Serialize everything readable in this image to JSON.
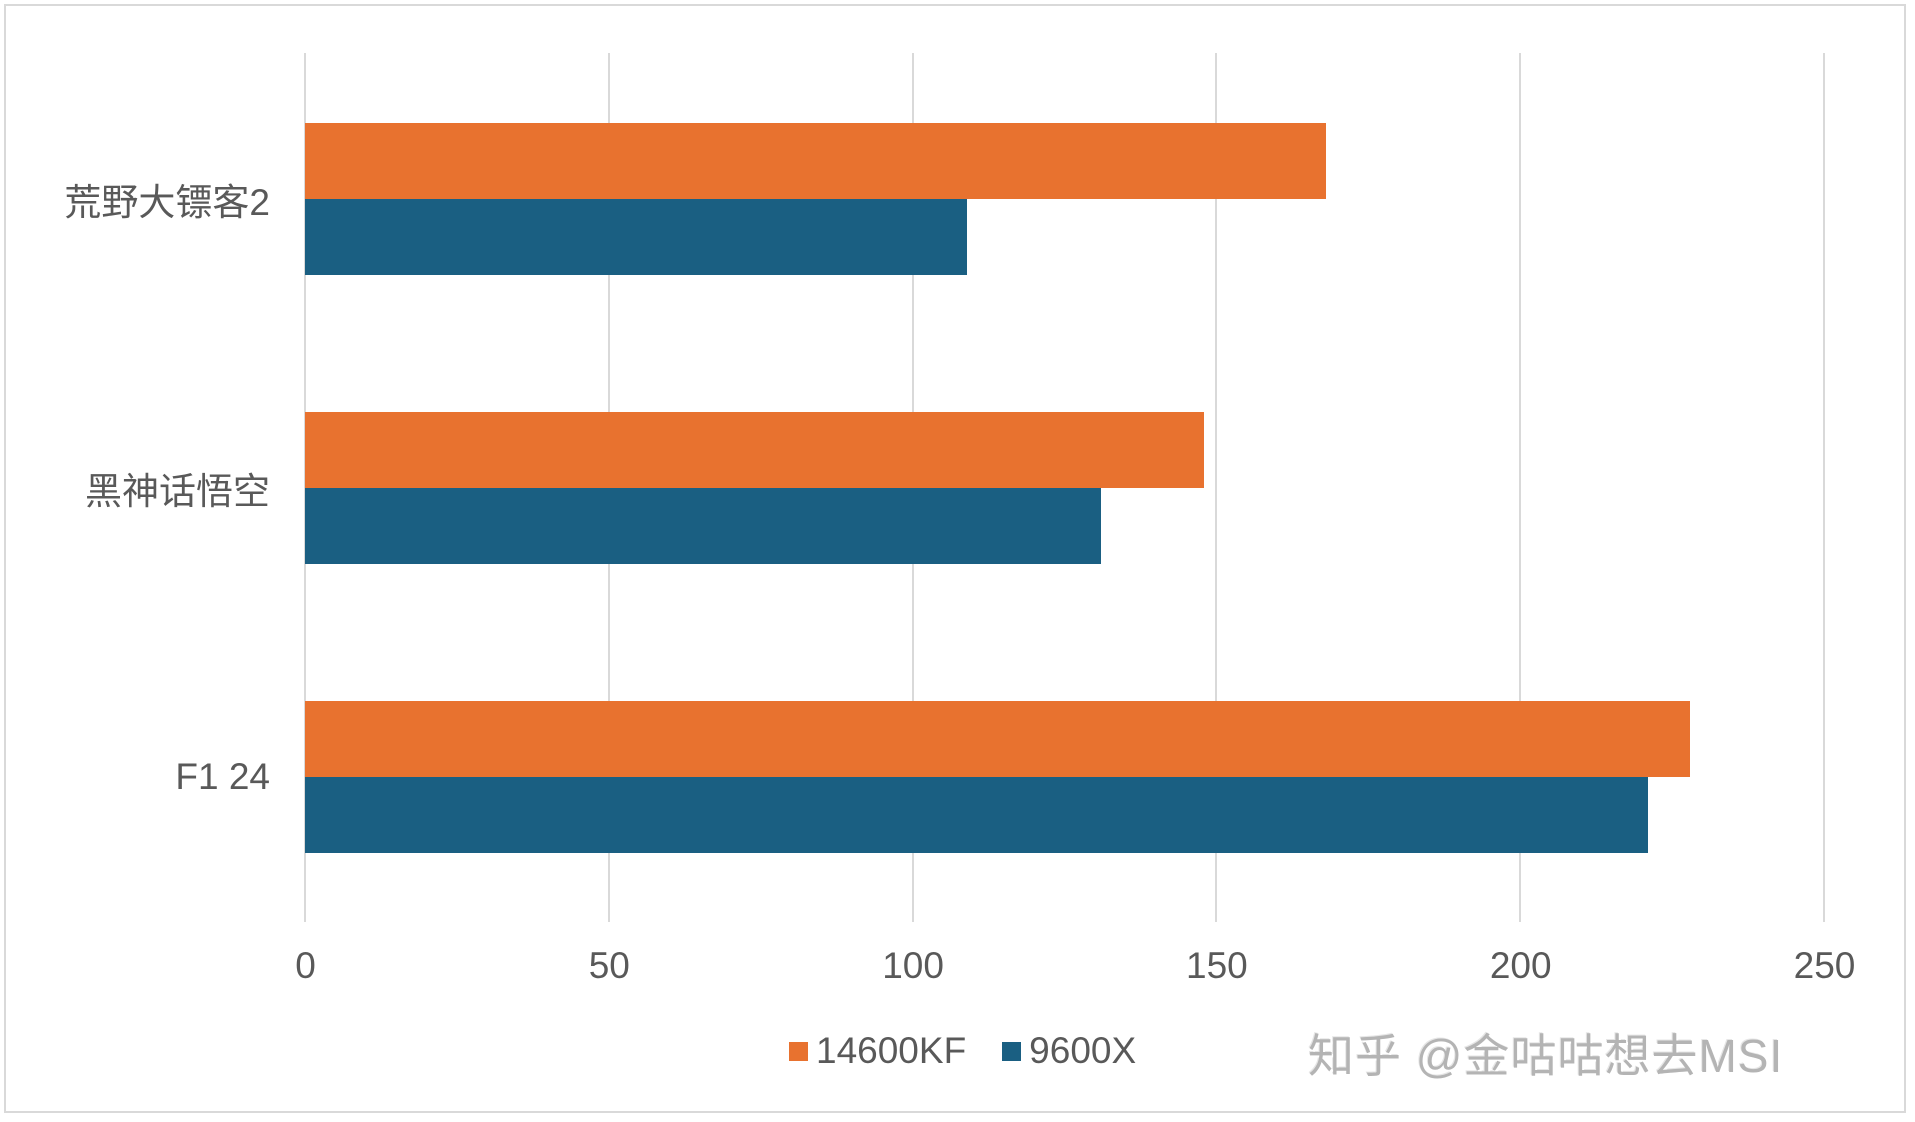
{
  "chart_data": {
    "type": "bar",
    "orientation": "horizontal",
    "title": "",
    "xlabel": "",
    "ylabel": "",
    "categories": [
      "荒野大镖客2",
      "黑神话悟空",
      "F1 24"
    ],
    "series": [
      {
        "name": "14600KF",
        "color": "#E8722F",
        "values": [
          168,
          148,
          228
        ]
      },
      {
        "name": "9600X",
        "color": "#1A5F82",
        "values": [
          109,
          131,
          221
        ]
      }
    ],
    "xlim": [
      0,
      250
    ],
    "xticks": [
      "0",
      "50",
      "100",
      "150",
      "200",
      "250"
    ],
    "grid": "vertical",
    "legend_position": "bottom"
  },
  "axis": {
    "ticks": [
      "0",
      "50",
      "100",
      "150",
      "200",
      "250"
    ]
  },
  "categories": [
    {
      "label": "荒野大镖客2"
    },
    {
      "label": "黑神话悟空"
    },
    {
      "label": "F1 24"
    }
  ],
  "legend": {
    "items": [
      {
        "label": "14600KF",
        "color": "#E8722F"
      },
      {
        "label": "9600X",
        "color": "#1A5F82"
      }
    ]
  },
  "watermark": {
    "text": "知乎 @金咕咕想去MSI"
  }
}
